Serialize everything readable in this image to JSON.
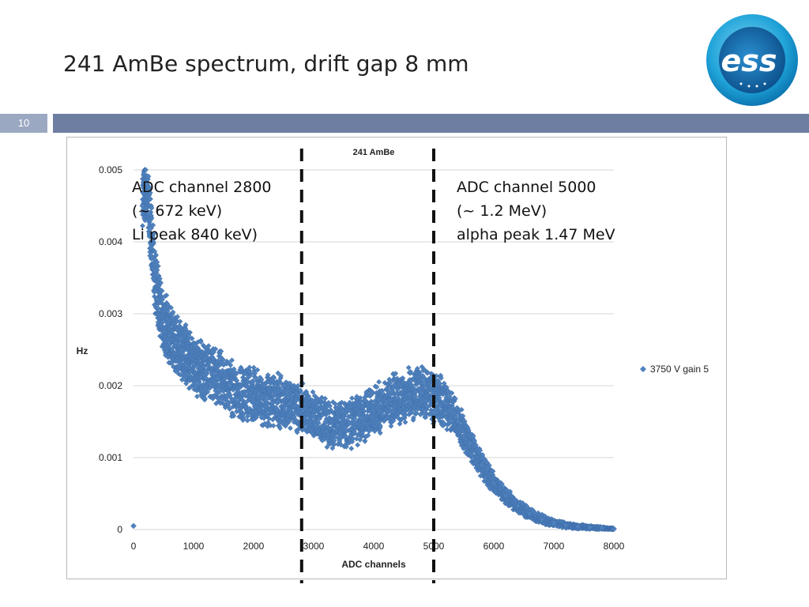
{
  "slide": {
    "title": "241 AmBe spectrum, drift gap 8 mm",
    "page_number": "10"
  },
  "logo": {
    "text": "ess",
    "icon": "ess-logo-icon",
    "colors": {
      "outer": "#1fa3d8",
      "inner": "#0d5f9e"
    }
  },
  "annotations": {
    "left": [
      "ADC channel 2800",
      "(~ 672 keV)",
      "Li peak 840 keV)"
    ],
    "right": [
      "ADC channel 5000",
      "(~ 1.2 MeV)",
      "alpha peak 1.47 MeV"
    ]
  },
  "chart_data": {
    "type": "scatter",
    "title": "241 AmBe",
    "xlabel": "ADC channels",
    "ylabel": "Hz",
    "xlim": [
      0,
      8000
    ],
    "ylim": [
      0,
      0.005
    ],
    "xticks": [
      0,
      1000,
      2000,
      3000,
      4000,
      5000,
      6000,
      7000,
      8000
    ],
    "yticks": [
      {
        "value": 0,
        "label": "0"
      },
      {
        "value": 0.001,
        "label": "0.001"
      },
      {
        "value": 0.002,
        "label": "0.002"
      },
      {
        "value": 0.003,
        "label": "0.003"
      },
      {
        "value": 0.004,
        "label": "0.004"
      },
      {
        "value": 0.005,
        "label": "0.005"
      }
    ],
    "grid": "horizontal",
    "legend_position": "right",
    "marker_color": "#4f81bd",
    "series": [
      {
        "name": "3750 V gain 5",
        "points": [
          [
            0,
            5e-05
          ],
          [
            150,
            0.0045
          ],
          [
            200,
            0.0048
          ],
          [
            250,
            0.0044
          ],
          [
            300,
            0.004
          ],
          [
            350,
            0.0036
          ],
          [
            400,
            0.0032
          ],
          [
            500,
            0.0029
          ],
          [
            600,
            0.0027
          ],
          [
            700,
            0.0026
          ],
          [
            800,
            0.0025
          ],
          [
            1000,
            0.0023
          ],
          [
            1200,
            0.0022
          ],
          [
            1400,
            0.0021
          ],
          [
            1600,
            0.002
          ],
          [
            1800,
            0.0019
          ],
          [
            2000,
            0.00185
          ],
          [
            2200,
            0.0018
          ],
          [
            2400,
            0.00178
          ],
          [
            2600,
            0.00175
          ],
          [
            2800,
            0.0017
          ],
          [
            3000,
            0.00158
          ],
          [
            3200,
            0.0015
          ],
          [
            3400,
            0.00145
          ],
          [
            3600,
            0.00148
          ],
          [
            3800,
            0.00155
          ],
          [
            4000,
            0.00165
          ],
          [
            4200,
            0.00175
          ],
          [
            4400,
            0.00183
          ],
          [
            4600,
            0.00188
          ],
          [
            4800,
            0.0019
          ],
          [
            5000,
            0.00185
          ],
          [
            5200,
            0.00175
          ],
          [
            5400,
            0.0015
          ],
          [
            5600,
            0.0012
          ],
          [
            5800,
            0.0009
          ],
          [
            6000,
            0.00065
          ],
          [
            6200,
            0.00047
          ],
          [
            6400,
            0.00033
          ],
          [
            6600,
            0.00022
          ],
          [
            6800,
            0.00014
          ],
          [
            7000,
            9e-05
          ],
          [
            7200,
            6e-05
          ],
          [
            7400,
            4e-05
          ],
          [
            7600,
            3e-05
          ],
          [
            7800,
            2e-05
          ],
          [
            8000,
            1e-05
          ]
        ],
        "spread": [
          [
            0,
            0
          ],
          [
            200,
            0.0006
          ],
          [
            500,
            0.0005
          ],
          [
            1000,
            0.00045
          ],
          [
            2000,
            0.00045
          ],
          [
            3000,
            0.00035
          ],
          [
            4000,
            0.0004
          ],
          [
            5000,
            0.0004
          ],
          [
            6000,
            0.00015
          ],
          [
            7000,
            5e-05
          ],
          [
            8000,
            1e-05
          ]
        ]
      }
    ],
    "markers": [
      {
        "x": 2800,
        "style": "dashed"
      },
      {
        "x": 5000,
        "style": "dashed"
      }
    ]
  }
}
